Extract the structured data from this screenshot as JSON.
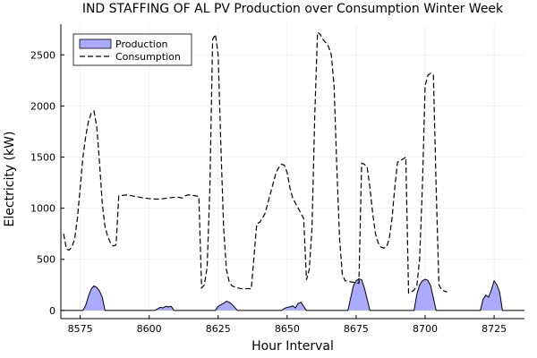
{
  "chart_data": {
    "type": "area",
    "title": "IND STAFFING OF AL PV Production over Consumption Winter Week",
    "xlabel": "Hour Interval",
    "ylabel": "Electricity (kW)",
    "xlim": [
      8568,
      8736
    ],
    "ylim": [
      -80,
      2800
    ],
    "xticks": [
      8575,
      8600,
      8625,
      8650,
      8675,
      8700,
      8725
    ],
    "yticks": [
      0,
      500,
      1000,
      1500,
      2000,
      2500
    ],
    "grid": true,
    "legend_position": "top-left",
    "series": [
      {
        "name": "Production",
        "style": "filled-area",
        "fill": "#aaaaff",
        "stroke": "#000000",
        "points": [
          [
            8568,
            0
          ],
          [
            8576,
            0
          ],
          [
            8577,
            50
          ],
          [
            8578,
            140
          ],
          [
            8579,
            210
          ],
          [
            8580,
            240
          ],
          [
            8581,
            225
          ],
          [
            8582,
            190
          ],
          [
            8583,
            130
          ],
          [
            8584,
            0
          ],
          [
            8602,
            0
          ],
          [
            8603,
            15
          ],
          [
            8604,
            30
          ],
          [
            8605,
            25
          ],
          [
            8606,
            40
          ],
          [
            8607,
            35
          ],
          [
            8608,
            40
          ],
          [
            8609,
            0
          ],
          [
            8624,
            0
          ],
          [
            8625,
            40
          ],
          [
            8626,
            55
          ],
          [
            8627,
            70
          ],
          [
            8628,
            90
          ],
          [
            8629,
            80
          ],
          [
            8630,
            60
          ],
          [
            8631,
            30
          ],
          [
            8632,
            0
          ],
          [
            8648,
            0
          ],
          [
            8649,
            20
          ],
          [
            8650,
            30
          ],
          [
            8651,
            35
          ],
          [
            8652,
            45
          ],
          [
            8653,
            25
          ],
          [
            8654,
            70
          ],
          [
            8655,
            80
          ],
          [
            8656,
            40
          ],
          [
            8657,
            0
          ],
          [
            8672,
            0
          ],
          [
            8673,
            120
          ],
          [
            8674,
            240
          ],
          [
            8675,
            290
          ],
          [
            8676,
            310
          ],
          [
            8677,
            300
          ],
          [
            8678,
            220
          ],
          [
            8679,
            110
          ],
          [
            8680,
            0
          ],
          [
            8696,
            0
          ],
          [
            8697,
            160
          ],
          [
            8698,
            250
          ],
          [
            8699,
            290
          ],
          [
            8700,
            305
          ],
          [
            8701,
            295
          ],
          [
            8702,
            240
          ],
          [
            8703,
            120
          ],
          [
            8704,
            0
          ],
          [
            8720,
            0
          ],
          [
            8721,
            110
          ],
          [
            8722,
            150
          ],
          [
            8723,
            130
          ],
          [
            8724,
            200
          ],
          [
            8725,
            290
          ],
          [
            8726,
            250
          ],
          [
            8727,
            180
          ],
          [
            8728,
            0
          ],
          [
            8736,
            0
          ]
        ]
      },
      {
        "name": "Consumption",
        "style": "dashed-line",
        "stroke": "#000000",
        "points": [
          [
            8569,
            750
          ],
          [
            8570,
            600
          ],
          [
            8571,
            590
          ],
          [
            8572,
            620
          ],
          [
            8573,
            700
          ],
          [
            8574,
            900
          ],
          [
            8575,
            1200
          ],
          [
            8576,
            1500
          ],
          [
            8577,
            1700
          ],
          [
            8578,
            1850
          ],
          [
            8579,
            1930
          ],
          [
            8580,
            1950
          ],
          [
            8581,
            1800
          ],
          [
            8582,
            1450
          ],
          [
            8583,
            1050
          ],
          [
            8584,
            820
          ],
          [
            8585,
            720
          ],
          [
            8586,
            660
          ],
          [
            8587,
            630
          ],
          [
            8588,
            640
          ],
          [
            8589,
            1120
          ],
          [
            8592,
            1130
          ],
          [
            8595,
            1115
          ],
          [
            8598,
            1100
          ],
          [
            8601,
            1090
          ],
          [
            8604,
            1090
          ],
          [
            8607,
            1100
          ],
          [
            8610,
            1110
          ],
          [
            8612,
            1100
          ],
          [
            8613,
            1120
          ],
          [
            8614,
            1130
          ],
          [
            8616,
            1125
          ],
          [
            8618,
            1115
          ],
          [
            8619,
            220
          ],
          [
            8620,
            250
          ],
          [
            8621,
            420
          ],
          [
            8622,
            1200
          ],
          [
            8623,
            2650
          ],
          [
            8624,
            2700
          ],
          [
            8625,
            2500
          ],
          [
            8626,
            1600
          ],
          [
            8627,
            800
          ],
          [
            8628,
            400
          ],
          [
            8629,
            280
          ],
          [
            8630,
            240
          ],
          [
            8632,
            220
          ],
          [
            8634,
            210
          ],
          [
            8636,
            215
          ],
          [
            8637,
            210
          ],
          [
            8639,
            850
          ],
          [
            8640,
            860
          ],
          [
            8641,
            900
          ],
          [
            8642,
            950
          ],
          [
            8643,
            1050
          ],
          [
            8644,
            1150
          ],
          [
            8645,
            1250
          ],
          [
            8646,
            1350
          ],
          [
            8647,
            1400
          ],
          [
            8648,
            1430
          ],
          [
            8649,
            1420
          ],
          [
            8650,
            1350
          ],
          [
            8651,
            1200
          ],
          [
            8652,
            1100
          ],
          [
            8653,
            1050
          ],
          [
            8654,
            1000
          ],
          [
            8655,
            950
          ],
          [
            8656,
            900
          ],
          [
            8657,
            300
          ],
          [
            8658,
            400
          ],
          [
            8659,
            800
          ],
          [
            8660,
            1900
          ],
          [
            8661,
            2720
          ],
          [
            8662,
            2700
          ],
          [
            8663,
            2650
          ],
          [
            8664,
            2620
          ],
          [
            8665,
            2580
          ],
          [
            8666,
            2500
          ],
          [
            8667,
            2200
          ],
          [
            8668,
            1400
          ],
          [
            8669,
            700
          ],
          [
            8670,
            350
          ],
          [
            8671,
            290
          ],
          [
            8673,
            280
          ],
          [
            8675,
            270
          ],
          [
            8676,
            265
          ],
          [
            8677,
            1440
          ],
          [
            8678,
            1430
          ],
          [
            8679,
            1400
          ],
          [
            8680,
            1200
          ],
          [
            8681,
            950
          ],
          [
            8682,
            750
          ],
          [
            8683,
            660
          ],
          [
            8684,
            620
          ],
          [
            8685,
            610
          ],
          [
            8686,
            620
          ],
          [
            8687,
            700
          ],
          [
            8688,
            900
          ],
          [
            8689,
            1200
          ],
          [
            8690,
            1450
          ],
          [
            8692,
            1480
          ],
          [
            8693,
            1500
          ],
          [
            8694,
            170
          ],
          [
            8695,
            180
          ],
          [
            8696,
            200
          ],
          [
            8697,
            240
          ],
          [
            8698,
            500
          ],
          [
            8699,
            1200
          ],
          [
            8700,
            2200
          ],
          [
            8701,
            2300
          ],
          [
            8702,
            2320
          ],
          [
            8703,
            2300
          ],
          [
            8704,
            1200
          ],
          [
            8705,
            250
          ],
          [
            8706,
            200
          ],
          [
            8707,
            190
          ],
          [
            8708,
            180
          ]
        ]
      }
    ]
  }
}
